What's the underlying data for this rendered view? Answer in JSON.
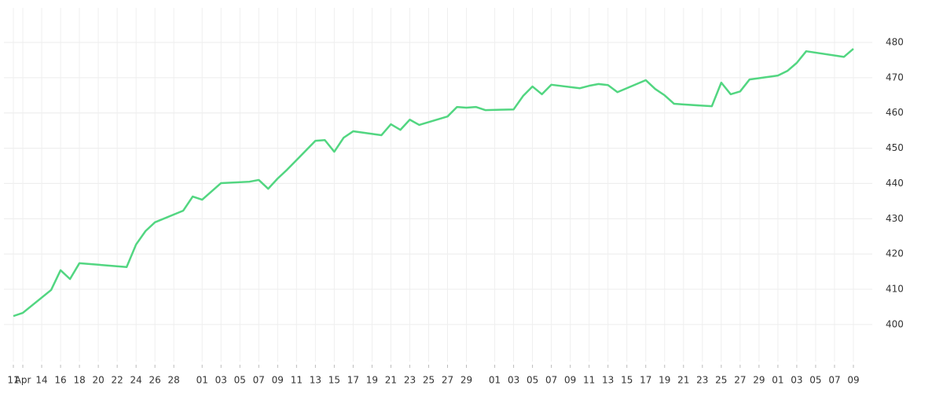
{
  "chart_data": {
    "type": "line",
    "x": [
      "04-11",
      "04-12",
      "04-15",
      "04-16",
      "04-17",
      "04-18",
      "04-23",
      "04-24",
      "04-25",
      "04-26",
      "04-29",
      "04-30",
      "05-01",
      "05-03",
      "05-06",
      "05-07",
      "05-08",
      "05-09",
      "05-10",
      "05-13",
      "05-14",
      "05-15",
      "05-16",
      "05-17",
      "05-20",
      "05-21",
      "05-22",
      "05-23",
      "05-24",
      "05-27",
      "05-28",
      "05-29",
      "05-30",
      "05-31",
      "06-03",
      "06-04",
      "06-05",
      "06-06",
      "06-07",
      "06-10",
      "06-11",
      "06-12",
      "06-13",
      "06-14",
      "06-17",
      "06-18",
      "06-19",
      "06-20",
      "06-21",
      "06-24",
      "06-25",
      "06-26",
      "06-27",
      "06-28",
      "07-01",
      "07-02",
      "07-03",
      "07-04",
      "07-08",
      "07-09"
    ],
    "series": [
      {
        "color": "#52d681",
        "values": [
          402.4,
          403.3,
          409.8,
          415.4,
          412.9,
          417.4,
          416.3,
          422.7,
          426.5,
          429.0,
          432.3,
          436.3,
          435.4,
          440.1,
          440.5,
          441.0,
          438.5,
          441.4,
          443.9,
          452.1,
          452.3,
          449.0,
          453.0,
          454.8,
          453.7,
          456.8,
          455.2,
          458.1,
          456.6,
          459.0,
          461.7,
          461.5,
          461.7,
          460.8,
          461.0,
          464.8,
          467.5,
          465.3,
          468.0,
          467.0,
          467.7,
          468.2,
          467.9,
          465.9,
          469.3,
          466.8,
          465.0,
          462.6,
          462.4,
          461.9,
          468.6,
          465.3,
          466.1,
          469.5,
          470.6,
          471.9,
          474.2,
          477.5,
          475.9,
          478.2
        ]
      }
    ],
    "xlim": [
      "04-10",
      "07-11"
    ],
    "xticks": [
      {
        "value": "04-11",
        "label": "11"
      },
      {
        "value": "04-12",
        "label": "Apr"
      },
      {
        "value": "04-14",
        "label": "14"
      },
      {
        "value": "04-16",
        "label": "16"
      },
      {
        "value": "04-18",
        "label": "18"
      },
      {
        "value": "04-20",
        "label": "20"
      },
      {
        "value": "04-22",
        "label": "22"
      },
      {
        "value": "04-24",
        "label": "24"
      },
      {
        "value": "04-26",
        "label": "26"
      },
      {
        "value": "04-28",
        "label": "28"
      },
      {
        "value": "05-01",
        "label": "01"
      },
      {
        "value": "05-03",
        "label": "03"
      },
      {
        "value": "05-05",
        "label": "05"
      },
      {
        "value": "05-07",
        "label": "07"
      },
      {
        "value": "05-09",
        "label": "09"
      },
      {
        "value": "05-11",
        "label": "11"
      },
      {
        "value": "05-13",
        "label": "13"
      },
      {
        "value": "05-15",
        "label": "15"
      },
      {
        "value": "05-17",
        "label": "17"
      },
      {
        "value": "05-19",
        "label": "19"
      },
      {
        "value": "05-21",
        "label": "21"
      },
      {
        "value": "05-23",
        "label": "23"
      },
      {
        "value": "05-25",
        "label": "25"
      },
      {
        "value": "05-27",
        "label": "27"
      },
      {
        "value": "05-29",
        "label": "29"
      },
      {
        "value": "06-01",
        "label": "01"
      },
      {
        "value": "06-03",
        "label": "03"
      },
      {
        "value": "06-05",
        "label": "05"
      },
      {
        "value": "06-07",
        "label": "07"
      },
      {
        "value": "06-09",
        "label": "09"
      },
      {
        "value": "06-11",
        "label": "11"
      },
      {
        "value": "06-13",
        "label": "13"
      },
      {
        "value": "06-15",
        "label": "15"
      },
      {
        "value": "06-17",
        "label": "17"
      },
      {
        "value": "06-19",
        "label": "19"
      },
      {
        "value": "06-21",
        "label": "21"
      },
      {
        "value": "06-23",
        "label": "23"
      },
      {
        "value": "06-25",
        "label": "25"
      },
      {
        "value": "06-27",
        "label": "27"
      },
      {
        "value": "06-29",
        "label": "29"
      },
      {
        "value": "07-01",
        "label": "01"
      },
      {
        "value": "07-03",
        "label": "03"
      },
      {
        "value": "07-05",
        "label": "05"
      },
      {
        "value": "07-07",
        "label": "07"
      },
      {
        "value": "07-09",
        "label": "09"
      }
    ],
    "ylim": [
      389.5,
      489.8
    ],
    "yticks": [
      400,
      410,
      420,
      430,
      440,
      450,
      460,
      470,
      480
    ],
    "grid": true
  }
}
